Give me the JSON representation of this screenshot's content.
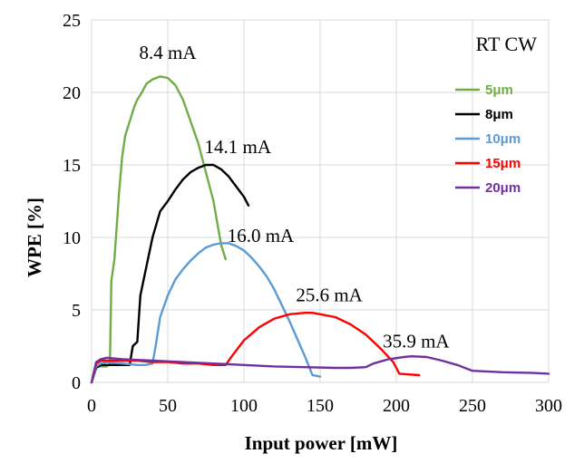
{
  "chart_data": {
    "type": "line",
    "xlabel": "Input power [mW]",
    "ylabel": "WPE [%]",
    "xlim": [
      0,
      300
    ],
    "ylim": [
      0,
      25
    ],
    "xticks": [
      "0",
      "50",
      "100",
      "150",
      "200",
      "250",
      "300"
    ],
    "yticks": [
      "0",
      "5",
      "10",
      "15",
      "20",
      "25"
    ],
    "condition_label": "RT CW",
    "series": [
      {
        "name": "5μm",
        "color": "#70ad47",
        "x": [
          0,
          2,
          4,
          7,
          10,
          12,
          13,
          15,
          18,
          20,
          22,
          25,
          28,
          30,
          33,
          36,
          40,
          45,
          50,
          55,
          60,
          65,
          70,
          75,
          80,
          85,
          88
        ],
        "y": [
          0,
          0.8,
          1.1,
          1.1,
          1.1,
          1.3,
          7.0,
          8.5,
          13.0,
          15.5,
          17.0,
          18.0,
          19.0,
          19.5,
          20.0,
          20.6,
          20.9,
          21.1,
          21.0,
          20.5,
          19.5,
          18.0,
          16.5,
          14.5,
          12.5,
          9.5,
          8.5
        ]
      },
      {
        "name": "8μm",
        "color": "#000000",
        "x": [
          0,
          3,
          6,
          10,
          15,
          20,
          25,
          27,
          30,
          32,
          35,
          40,
          45,
          50,
          55,
          60,
          65,
          70,
          75,
          80,
          85,
          90,
          95,
          100,
          103
        ],
        "y": [
          0,
          1.0,
          1.2,
          1.2,
          1.2,
          1.2,
          1.2,
          2.5,
          2.8,
          6.0,
          7.5,
          10.0,
          11.8,
          12.5,
          13.3,
          14.0,
          14.5,
          14.8,
          15.0,
          15.0,
          14.7,
          14.2,
          13.5,
          12.8,
          12.2
        ]
      },
      {
        "name": "10μm",
        "color": "#5b9bd5",
        "x": [
          0,
          3,
          6,
          10,
          20,
          30,
          35,
          40,
          42,
          45,
          50,
          55,
          60,
          65,
          70,
          75,
          80,
          85,
          90,
          95,
          100,
          105,
          110,
          115,
          120,
          125,
          130,
          135,
          140,
          145,
          150
        ],
        "y": [
          0,
          1.1,
          1.3,
          1.4,
          1.3,
          1.2,
          1.2,
          1.3,
          2.5,
          4.5,
          6.0,
          7.1,
          7.8,
          8.4,
          8.9,
          9.3,
          9.5,
          9.6,
          9.6,
          9.4,
          9.1,
          8.6,
          8.0,
          7.3,
          6.4,
          5.3,
          4.2,
          3.0,
          1.8,
          0.5,
          0.4
        ]
      },
      {
        "name": "15μm",
        "color": "#ff0000",
        "x": [
          0,
          3,
          6,
          10,
          20,
          30,
          40,
          50,
          60,
          70,
          80,
          85,
          88,
          92,
          100,
          110,
          120,
          130,
          140,
          145,
          150,
          160,
          170,
          180,
          190,
          198,
          202,
          208,
          215
        ],
        "y": [
          0,
          1.3,
          1.5,
          1.5,
          1.5,
          1.5,
          1.4,
          1.4,
          1.3,
          1.3,
          1.2,
          1.2,
          1.2,
          1.8,
          2.9,
          3.8,
          4.4,
          4.7,
          4.8,
          4.8,
          4.7,
          4.5,
          4.0,
          3.3,
          2.3,
          1.4,
          0.6,
          0.55,
          0.5
        ]
      },
      {
        "name": "20μm",
        "color": "#7030a0",
        "x": [
          0,
          3,
          6,
          10,
          20,
          40,
          60,
          80,
          100,
          120,
          140,
          160,
          170,
          180,
          185,
          195,
          205,
          210,
          220,
          230,
          240,
          250,
          270,
          290,
          300
        ],
        "y": [
          0,
          1.4,
          1.6,
          1.7,
          1.6,
          1.5,
          1.4,
          1.3,
          1.2,
          1.1,
          1.05,
          1.0,
          1.0,
          1.05,
          1.3,
          1.6,
          1.75,
          1.8,
          1.75,
          1.5,
          1.2,
          0.8,
          0.7,
          0.65,
          0.6
        ]
      }
    ],
    "annotations": [
      {
        "text": "8.4 mA",
        "x": 50,
        "y": 22.3
      },
      {
        "text": "14.1 mA",
        "x": 96,
        "y": 15.8
      },
      {
        "text": "16.0 mA",
        "x": 111,
        "y": 9.7
      },
      {
        "text": "25.6 mA",
        "x": 156,
        "y": 5.6
      },
      {
        "text": "35.9 mA",
        "x": 213,
        "y": 2.4
      }
    ]
  }
}
